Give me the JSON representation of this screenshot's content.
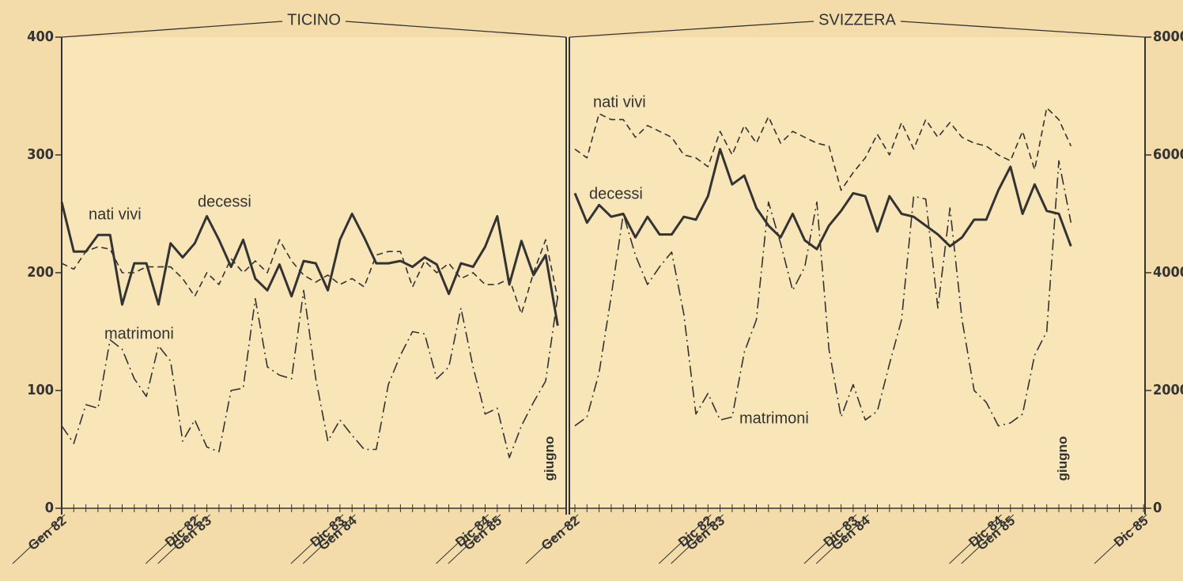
{
  "chart_data": [
    {
      "type": "line",
      "title": "TICINO",
      "categories": [
        "Gen 82",
        null,
        null,
        null,
        null,
        null,
        null,
        null,
        null,
        null,
        null,
        "Dic 82",
        "Gen 83",
        null,
        null,
        null,
        null,
        null,
        null,
        null,
        null,
        null,
        null,
        "Dic 83",
        "Gen 84",
        null,
        null,
        null,
        null,
        null,
        null,
        null,
        null,
        null,
        null,
        "Dic 84",
        "Gen 85",
        null,
        null,
        null,
        null,
        "giugno"
      ],
      "ylim": [
        0,
        400
      ],
      "yticks": [
        0,
        100,
        200,
        300,
        400
      ],
      "color": "#333333",
      "series": [
        {
          "name": "nati vivi",
          "color": "#333333",
          "linestyle": "dashed",
          "values": [
            208,
            203,
            218,
            222,
            220,
            200,
            200,
            205,
            205,
            205,
            195,
            180,
            200,
            190,
            212,
            200,
            210,
            200,
            228,
            210,
            198,
            192,
            198,
            190,
            195,
            188,
            215,
            218,
            218,
            188,
            210,
            200,
            208,
            195,
            200,
            190,
            190,
            195,
            165,
            200,
            228,
            178
          ]
        },
        {
          "name": "decessi",
          "color": "#333333",
          "linestyle": "solid",
          "values": [
            260,
            218,
            218,
            232,
            232,
            173,
            208,
            208,
            173,
            225,
            213,
            225,
            248,
            228,
            205,
            228,
            195,
            185,
            207,
            180,
            210,
            208,
            185,
            228,
            250,
            230,
            208,
            208,
            210,
            205,
            213,
            207,
            182,
            208,
            205,
            222,
            248,
            190,
            227,
            198,
            215,
            155
          ]
        },
        {
          "name": "matrimoni",
          "color": "#333333",
          "linestyle": "dashdot",
          "values": [
            70,
            55,
            88,
            85,
            143,
            135,
            110,
            95,
            138,
            125,
            57,
            75,
            52,
            48,
            100,
            102,
            178,
            120,
            113,
            110,
            185,
            110,
            57,
            75,
            62,
            50,
            50,
            105,
            130,
            150,
            148,
            110,
            120,
            170,
            120,
            80,
            85,
            43,
            70,
            90,
            108,
            180
          ]
        }
      ]
    },
    {
      "type": "line",
      "title": "SVIZZERA",
      "categories": [
        "Gen 82",
        null,
        null,
        null,
        null,
        null,
        null,
        null,
        null,
        null,
        null,
        "Dic 82",
        "Gen 83",
        null,
        null,
        null,
        null,
        null,
        null,
        null,
        null,
        null,
        null,
        "Dic 83",
        "Gen 84",
        null,
        null,
        null,
        null,
        null,
        null,
        null,
        null,
        null,
        null,
        "Dic 84",
        "Gen 85",
        null,
        null,
        null,
        null,
        "giugno",
        null,
        null,
        null,
        null,
        null,
        "Dic 85"
      ],
      "ylim": [
        0,
        8000
      ],
      "yticks": [
        0,
        2000,
        4000,
        6000,
        8000
      ],
      "color": "#333333",
      "series": [
        {
          "name": "nati vivi",
          "color": "#333333",
          "linestyle": "dashed",
          "values": [
            6100,
            5950,
            6700,
            6600,
            6600,
            6300,
            6500,
            6400,
            6300,
            6000,
            5950,
            5800,
            6400,
            6000,
            6500,
            6200,
            6650,
            6200,
            6400,
            6300,
            6200,
            6150,
            5400,
            5700,
            5950,
            6350,
            6000,
            6550,
            6100,
            6600,
            6300,
            6550,
            6300,
            6200,
            6150,
            6000,
            5900,
            6400,
            5750,
            6800,
            6600,
            6150,
            null,
            null,
            null,
            null,
            null,
            null
          ]
        },
        {
          "name": "decessi",
          "color": "#333333",
          "linestyle": "solid",
          "values": [
            5350,
            4850,
            5150,
            4950,
            5000,
            4600,
            4950,
            4650,
            4650,
            4950,
            4900,
            5300,
            6100,
            5500,
            5650,
            5100,
            4800,
            4600,
            5000,
            4550,
            4400,
            4800,
            5050,
            5350,
            5300,
            4700,
            5300,
            5000,
            4950,
            4800,
            4650,
            4450,
            4600,
            4900,
            4900,
            5400,
            5800,
            5000,
            5500,
            5050,
            5000,
            4450,
            null,
            null,
            null,
            null,
            null,
            null
          ]
        },
        {
          "name": "matrimoni",
          "color": "#333333",
          "linestyle": "dashdot",
          "values": [
            1400,
            1550,
            2300,
            3600,
            5000,
            4300,
            3800,
            4100,
            4350,
            3300,
            1600,
            1950,
            1500,
            1550,
            2650,
            3200,
            5200,
            4500,
            3700,
            4100,
            5200,
            2700,
            1550,
            2100,
            1500,
            1650,
            2450,
            3200,
            5300,
            5250,
            3400,
            5100,
            3200,
            2000,
            1800,
            1400,
            1450,
            1600,
            2600,
            3000,
            5900,
            4850,
            null,
            null,
            null,
            null,
            null,
            null
          ]
        }
      ]
    }
  ]
}
